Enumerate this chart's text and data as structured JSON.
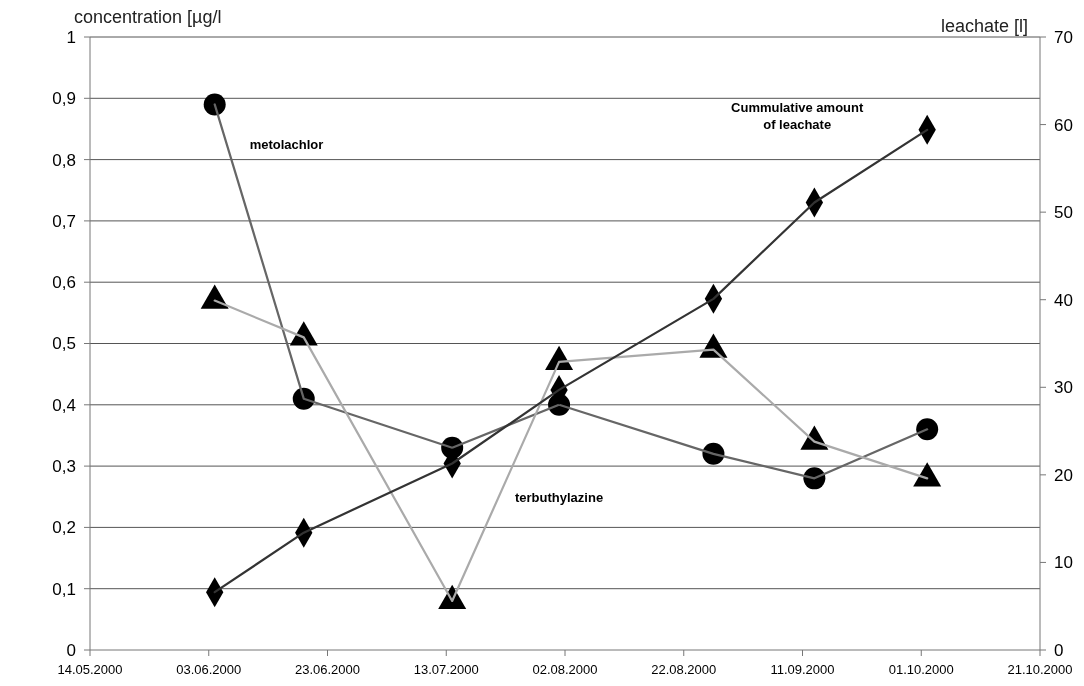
{
  "chart_data": {
    "type": "line",
    "ylabel": "concentration [µg/l",
    "y2label": "leachate [l]",
    "x": [
      "2000-06-04",
      "2000-06-19",
      "2000-07-14",
      "2000-08-01",
      "2000-08-27",
      "2000-09-13",
      "2000-10-02"
    ],
    "xlim": [
      "2000-05-14",
      "2000-10-21"
    ],
    "xticks": [
      {
        "value": "2000-05-14",
        "label": "14.05.2000"
      },
      {
        "value": "2000-06-03",
        "label": "03.06.2000"
      },
      {
        "value": "2000-06-23",
        "label": "23.06.2000"
      },
      {
        "value": "2000-07-13",
        "label": "13.07.2000"
      },
      {
        "value": "2000-08-02",
        "label": "02.08.2000"
      },
      {
        "value": "2000-08-22",
        "label": "22.08.2000"
      },
      {
        "value": "2000-09-11",
        "label": "11.09.2000"
      },
      {
        "value": "2000-10-01",
        "label": "01.10.2000"
      },
      {
        "value": "2000-10-21",
        "label": "21.10.2000"
      }
    ],
    "ylim": [
      0,
      1
    ],
    "yticks": [
      0,
      {
        "value": 0.1,
        "label": "0,1"
      },
      {
        "value": 0.2,
        "label": "0,2"
      },
      {
        "value": 0.3,
        "label": "0,3"
      },
      {
        "value": 0.4,
        "label": "0,4"
      },
      {
        "value": 0.5,
        "label": "0,5"
      },
      {
        "value": 0.6,
        "label": "0,6"
      },
      {
        "value": 0.7,
        "label": "0,7"
      },
      {
        "value": 0.8,
        "label": "0,8"
      },
      {
        "value": 0.9,
        "label": "0,9"
      },
      1
    ],
    "y2lim": [
      0,
      70
    ],
    "y2ticks": [
      0,
      10,
      20,
      30,
      40,
      50,
      60,
      70
    ],
    "grid": "y",
    "legend": false,
    "series": [
      {
        "name": "metolachlor",
        "color": "#666666",
        "marker": "circle",
        "values": [
          0.89,
          0.41,
          0.33,
          0.4,
          0.32,
          0.28,
          0.36
        ]
      },
      {
        "name": "terbuthylazine",
        "color": "#aaaaaa",
        "marker": "triangle",
        "values": [
          0.57,
          0.51,
          0.08,
          0.47,
          0.49,
          0.34,
          0.28
        ]
      },
      {
        "name": "Cummulative amount of leachate",
        "color": "#333333",
        "marker": "diamond",
        "axis": "y2",
        "values": [
          6.6,
          13.4,
          21.3,
          29.7,
          40.1,
          51.1,
          59.4
        ]
      }
    ]
  }
}
